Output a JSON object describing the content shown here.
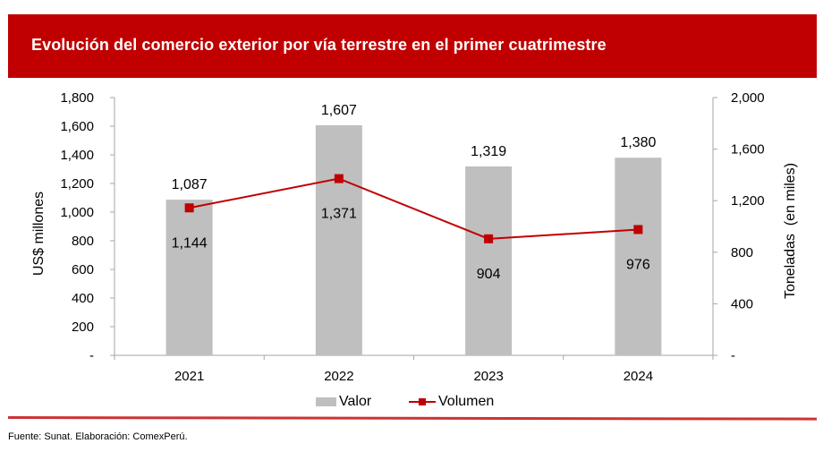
{
  "header": {
    "title": "Evolución del comercio exterior por vía terrestre en el primer cuatrimestre"
  },
  "colors": {
    "banner": "#C00000",
    "bar": "#BFBFBF",
    "line": "#C00000",
    "axis": "#A6A6A6",
    "divider": "#CC3333"
  },
  "chart_data": {
    "type": "bar",
    "title": "Evolución del comercio exterior por vía terrestre en el primer cuatrimestre",
    "categories": [
      "2021",
      "2022",
      "2023",
      "2024"
    ],
    "series": [
      {
        "name": "Valor",
        "type": "bar",
        "axis": "left",
        "values": [
          1087,
          1607,
          1319,
          1380
        ],
        "labels": [
          "1,087",
          "1,607",
          "1,319",
          "1,380"
        ]
      },
      {
        "name": "Volumen",
        "type": "line",
        "axis": "right",
        "marker": "square",
        "values": [
          1144,
          1371,
          904,
          976
        ],
        "labels": [
          "1,144",
          "1,371",
          "904",
          "976"
        ]
      }
    ],
    "ylabel": "US$ millones",
    "y2label": "Toneladas  (en miles)",
    "xlabel": "",
    "ylim": [
      0,
      1800
    ],
    "y2lim": [
      0,
      2000
    ],
    "yticks": [
      0,
      200,
      400,
      600,
      800,
      1000,
      1200,
      1400,
      1600,
      1800
    ],
    "ytick_labels": [
      "-",
      "200",
      "400",
      "600",
      "800",
      "1,000",
      "1,200",
      "1,400",
      "1,600",
      "1,800"
    ],
    "y2ticks": [
      0,
      400,
      800,
      1200,
      1600,
      2000
    ],
    "y2tick_labels": [
      "-",
      "400",
      "800",
      "1,200",
      "1,600",
      "2,000"
    ],
    "grid": false,
    "legend": "bottom-center"
  },
  "legend": {
    "items": [
      {
        "label": "Valor",
        "kind": "bar"
      },
      {
        "label": "Volumen",
        "kind": "line-marker"
      }
    ]
  },
  "footer": {
    "source": "Fuente: Sunat. Elaboración: ComexPerú."
  }
}
